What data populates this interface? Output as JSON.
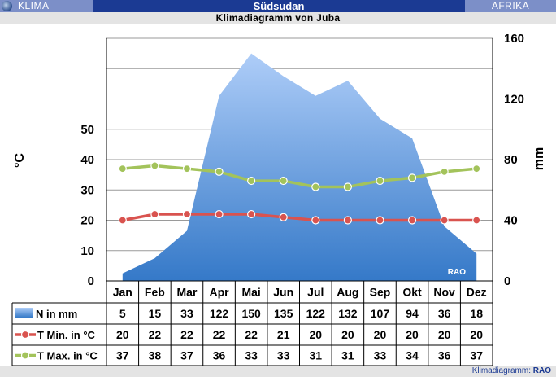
{
  "header": {
    "left_label": "KLIMA",
    "center_title": "Südsudan",
    "right_label": "AFRIKA",
    "subtitle": "Klimadiagramm von Juba",
    "footer_prefix": "Klimadiagramm:",
    "footer_brand": "RAO",
    "watermark": "RAO"
  },
  "colors": {
    "bar": "#1b3a93",
    "bar_side": "#7c8fc8",
    "precip_top": "#aecdf8",
    "precip_bottom": "#3579c8",
    "tmin": "#d9534f",
    "tmax": "#a3c35b"
  },
  "chart_data": {
    "type": "area",
    "categories": [
      "Jan",
      "Feb",
      "Mar",
      "Apr",
      "Mai",
      "Jun",
      "Jul",
      "Aug",
      "Sep",
      "Okt",
      "Nov",
      "Dez"
    ],
    "left_axis": {
      "label": "°C",
      "ylim": [
        0,
        80
      ],
      "ticks": [
        0,
        10,
        20,
        30,
        40,
        50
      ]
    },
    "right_axis": {
      "label": "mm",
      "ylim": [
        0,
        160
      ],
      "ticks": [
        0,
        40,
        80,
        120,
        160
      ]
    },
    "grid": true,
    "legend": "table-below",
    "series": [
      {
        "name": "N in mm",
        "kind": "area",
        "axis": "right",
        "color": "#4a8fe0",
        "values": [
          5,
          15,
          33,
          122,
          150,
          135,
          122,
          132,
          107,
          94,
          36,
          18
        ]
      },
      {
        "name": "T Min. in °C",
        "kind": "line",
        "axis": "left",
        "color": "#d9534f",
        "values": [
          20,
          22,
          22,
          22,
          22,
          21,
          20,
          20,
          20,
          20,
          20,
          20
        ]
      },
      {
        "name": "T Max. in °C",
        "kind": "line",
        "axis": "left",
        "color": "#a3c35b",
        "values": [
          37,
          38,
          37,
          36,
          33,
          33,
          31,
          31,
          33,
          34,
          36,
          37
        ]
      }
    ]
  }
}
